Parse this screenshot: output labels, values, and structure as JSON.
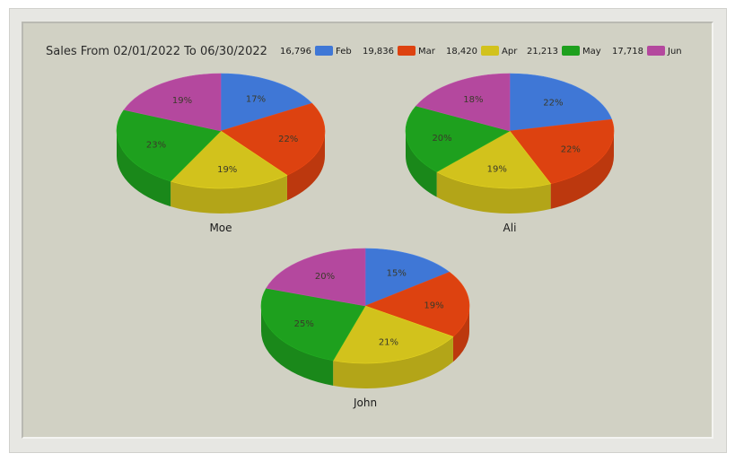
{
  "chart_data": {
    "type": "pie",
    "title": "Sales From 02/01/2022 To 06/30/2022",
    "legend_placement": "top-right",
    "legend": [
      {
        "name": "Feb",
        "value": "16,796",
        "color": "#3f77d6"
      },
      {
        "name": "Mar",
        "value": "19,836",
        "color": "#dd4210"
      },
      {
        "name": "Apr",
        "value": "18,420",
        "color": "#d2c21c"
      },
      {
        "name": "May",
        "value": "21,213",
        "color": "#1ea01e"
      },
      {
        "name": "Jun",
        "value": "17,718",
        "color": "#b4489e"
      }
    ],
    "pies": [
      {
        "label": "Moe",
        "percents": [
          17,
          22,
          19,
          23,
          19
        ],
        "labels": [
          "17%",
          "22%",
          "19%",
          "23%",
          "19%"
        ]
      },
      {
        "label": "Ali",
        "percents": [
          22,
          22,
          19,
          20,
          18
        ],
        "labels": [
          "22%",
          "22%",
          "19%",
          "20%",
          "18%"
        ]
      },
      {
        "label": "John",
        "percents": [
          15,
          19,
          21,
          25,
          20
        ],
        "labels": [
          "15%",
          "19%",
          "21%",
          "25%",
          "20%"
        ]
      }
    ]
  }
}
